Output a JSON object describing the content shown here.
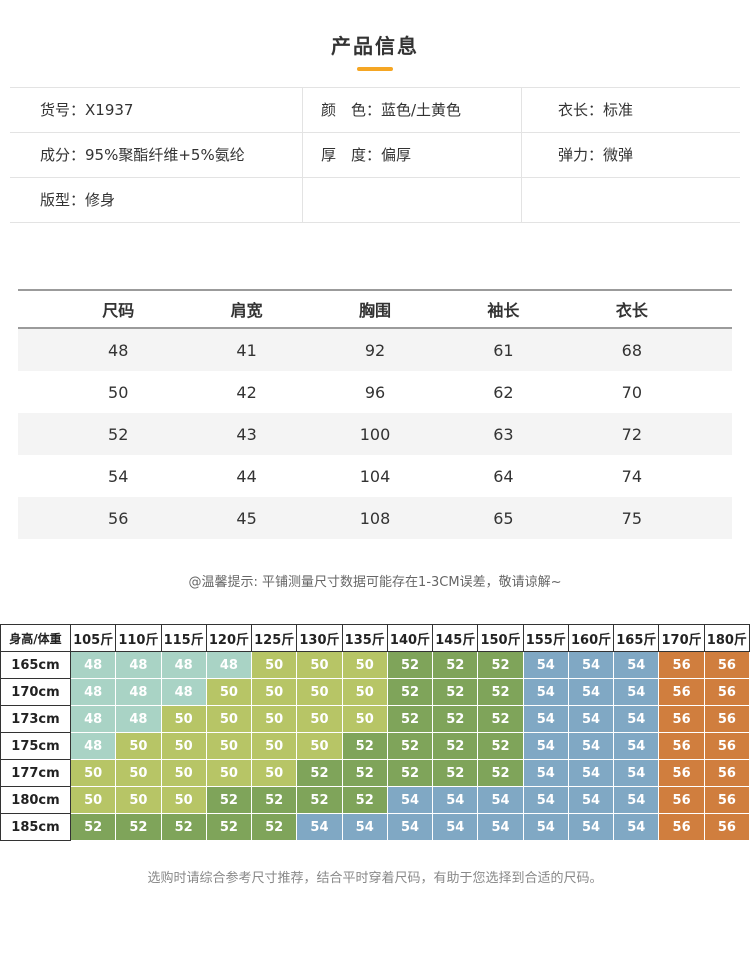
{
  "title": "产品信息",
  "accent_color": "#f5a623",
  "info_table": {
    "rows": [
      [
        "货号：X1937",
        "颜　色：蓝色/土黄色",
        "衣长：标准"
      ],
      [
        "成分：95%聚酯纤维+5%氨纶",
        "厚　度：偏厚",
        "弹力：微弹"
      ],
      [
        "版型：修身",
        "",
        ""
      ]
    ]
  },
  "size_table": {
    "headers": [
      "尺码",
      "肩宽",
      "胸围",
      "袖长",
      "衣长"
    ],
    "rows": [
      [
        "48",
        "41",
        "92",
        "61",
        "68"
      ],
      [
        "50",
        "42",
        "96",
        "62",
        "70"
      ],
      [
        "52",
        "43",
        "100",
        "63",
        "72"
      ],
      [
        "54",
        "44",
        "104",
        "64",
        "74"
      ],
      [
        "56",
        "45",
        "108",
        "65",
        "75"
      ]
    ]
  },
  "size_note": "@温馨提示: 平铺测量尺寸数据可能存在1-3CM误差，敬请谅解~",
  "size_matrix": {
    "corner_label": "身高/体重",
    "weights": [
      "105斤",
      "110斤",
      "115斤",
      "120斤",
      "125斤",
      "130斤",
      "135斤",
      "140斤",
      "145斤",
      "150斤",
      "155斤",
      "160斤",
      "165斤",
      "170斤",
      "180斤"
    ],
    "heights": [
      "165cm",
      "170cm",
      "173cm",
      "175cm",
      "177cm",
      "180cm",
      "185cm"
    ],
    "cells": [
      [
        "48",
        "48",
        "48",
        "48",
        "50",
        "50",
        "50",
        "52",
        "52",
        "52",
        "54",
        "54",
        "54",
        "56",
        "56"
      ],
      [
        "48",
        "48",
        "48",
        "50",
        "50",
        "50",
        "50",
        "52",
        "52",
        "52",
        "54",
        "54",
        "54",
        "56",
        "56"
      ],
      [
        "48",
        "48",
        "50",
        "50",
        "50",
        "50",
        "50",
        "52",
        "52",
        "52",
        "54",
        "54",
        "54",
        "56",
        "56"
      ],
      [
        "48",
        "50",
        "50",
        "50",
        "50",
        "50",
        "52",
        "52",
        "52",
        "52",
        "54",
        "54",
        "54",
        "56",
        "56"
      ],
      [
        "50",
        "50",
        "50",
        "50",
        "50",
        "52",
        "52",
        "52",
        "52",
        "52",
        "54",
        "54",
        "54",
        "56",
        "56"
      ],
      [
        "50",
        "50",
        "50",
        "52",
        "52",
        "52",
        "52",
        "54",
        "54",
        "54",
        "54",
        "54",
        "54",
        "56",
        "56"
      ],
      [
        "52",
        "52",
        "52",
        "52",
        "52",
        "54",
        "54",
        "54",
        "54",
        "54",
        "54",
        "54",
        "54",
        "56",
        "56"
      ]
    ],
    "size_colors": {
      "48": "#a9d3c5",
      "50": "#b7c566",
      "52": "#7fa45a",
      "54": "#80a8c4",
      "56": "#d07e3e"
    }
  },
  "footer_note": "选购时请综合参考尺寸推荐，结合平时穿着尺码，有助于您选择到合适的尺码。"
}
